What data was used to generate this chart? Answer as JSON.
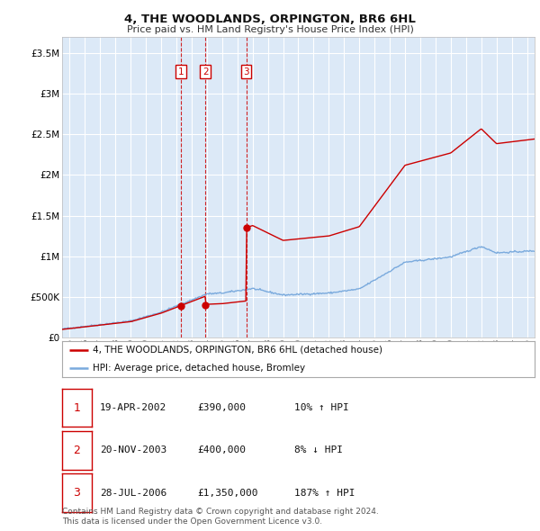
{
  "title": "4, THE WOODLANDS, ORPINGTON, BR6 6HL",
  "subtitle": "Price paid vs. HM Land Registry's House Price Index (HPI)",
  "ylabel_ticks": [
    "£0",
    "£500K",
    "£1M",
    "£1.5M",
    "£2M",
    "£2.5M",
    "£3M",
    "£3.5M"
  ],
  "ylabel_values": [
    0,
    500000,
    1000000,
    1500000,
    2000000,
    2500000,
    3000000,
    3500000
  ],
  "ylim": [
    0,
    3700000
  ],
  "xlim_start": 1994.5,
  "xlim_end": 2025.5,
  "background_color": "#dce9f7",
  "grid_color": "#ffffff",
  "hpi_color": "#7aaadd",
  "price_color": "#cc0000",
  "trans_year_vals": [
    2002.3,
    2003.9,
    2006.58
  ],
  "transaction_prices": [
    390000,
    400000,
    1350000
  ],
  "transaction_labels": [
    "1",
    "2",
    "3"
  ],
  "legend_entries": [
    "4, THE WOODLANDS, ORPINGTON, BR6 6HL (detached house)",
    "HPI: Average price, detached house, Bromley"
  ],
  "table_data": [
    [
      "1",
      "19-APR-2002",
      "£390,000",
      "10% ↑ HPI"
    ],
    [
      "2",
      "20-NOV-2003",
      "£400,000",
      "8% ↓ HPI"
    ],
    [
      "3",
      "28-JUL-2006",
      "£1,350,000",
      "187% ↑ HPI"
    ]
  ],
  "footer_line1": "Contains HM Land Registry data © Crown copyright and database right 2024.",
  "footer_line2": "This data is licensed under the Open Government Licence v3.0.",
  "xtick_years": [
    1995,
    1996,
    1997,
    1998,
    1999,
    2000,
    2001,
    2002,
    2003,
    2004,
    2005,
    2006,
    2007,
    2008,
    2009,
    2010,
    2011,
    2012,
    2013,
    2014,
    2015,
    2016,
    2017,
    2018,
    2019,
    2020,
    2021,
    2022,
    2023,
    2024,
    2025
  ]
}
